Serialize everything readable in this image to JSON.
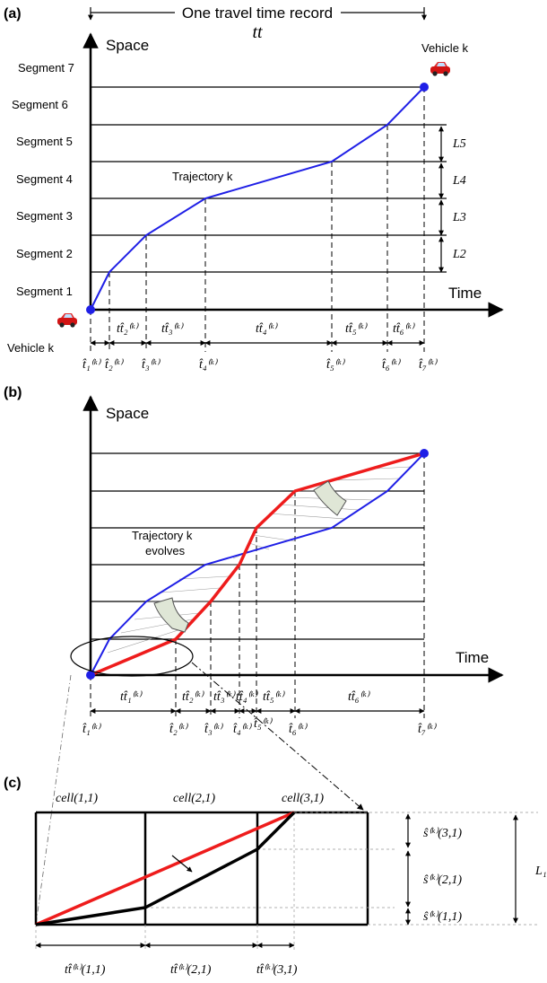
{
  "panel_a": {
    "label": "(a)",
    "top_label": "One travel time record",
    "tt_symbol": "tt",
    "y_axis": "Space",
    "x_axis": "Time",
    "trajectory": "Trajectory k",
    "vehicle_top": "Vehicle  k",
    "vehicle_bottom": "Vehicle  k",
    "segments": [
      "Segment 7",
      "Segment 6",
      "Segment 5",
      "Segment 4",
      "Segment 3",
      "Segment 2",
      "Segment 1"
    ],
    "lengths": [
      "L5",
      "L4",
      "L3",
      "L2"
    ],
    "intervals": [
      "tt̂₂⁽ᵏ⁾",
      "tt̂₃⁽ᵏ⁾",
      "tt̂₄⁽ᵏ⁾",
      "tt̂₅⁽ᵏ⁾",
      "tt̂₆⁽ᵏ⁾"
    ],
    "times": [
      "t̂₁⁽ᵏ⁾",
      "t̂₂⁽ᵏ⁾",
      "t̂₃⁽ᵏ⁾",
      "t̂₄⁽ᵏ⁾",
      "t̂₅⁽ᵏ⁾",
      "t̂₆⁽ᵏ⁾",
      "t̂₇⁽ᵏ⁾"
    ]
  },
  "panel_b": {
    "label": "(b)",
    "y_axis": "Space",
    "x_axis": "Time",
    "trajectory_line1": "Trajectory k",
    "trajectory_line2": "evolves",
    "intervals": [
      "tt̂₁⁽ᵏ⁾",
      "tt̂₂⁽ᵏ⁾",
      "tt̂₃⁽ᵏ⁾",
      "tt̂₄⁽ᵏ⁾",
      "tt̂₅⁽ᵏ⁾",
      "tt̂₆⁽ᵏ⁾"
    ],
    "times": [
      "t̂₁⁽ᵏ⁾",
      "t̂₂⁽ᵏ⁾",
      "t̂₃⁽ᵏ⁾",
      "t̂₄⁽ᵏ⁾",
      "t̂₅⁽ᵏ⁾",
      "t̂₆⁽ᵏ⁾",
      "t̂₇⁽ᵏ⁾"
    ]
  },
  "panel_c": {
    "label": "(c)",
    "cells": [
      "cell(1,1)",
      "cell(2,1)",
      "cell(3,1)"
    ],
    "s_labels": [
      "ŝ⁽ᵏ⁾(3,1)",
      "ŝ⁽ᵏ⁾(2,1)",
      "ŝ⁽ᵏ⁾(1,1)"
    ],
    "tt_labels": [
      "tt̂⁽ᵏ⁾(1,1)",
      "tt̂⁽ᵏ⁾(2,1)",
      "tt̂⁽ᵏ⁾(3,1)"
    ],
    "length_label": "L₁"
  },
  "colors": {
    "blue": "#1f1fe6",
    "red": "#ee1c1c",
    "black": "#000000",
    "arrow_fill": "#dfe6d6"
  }
}
